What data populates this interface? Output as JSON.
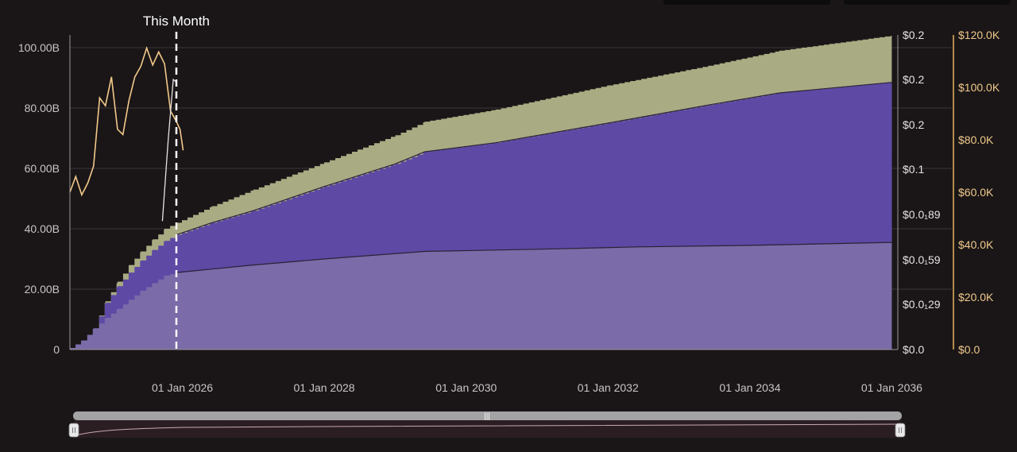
{
  "marker_label": "This Month",
  "colors": {
    "background": "#1a1617",
    "plot_bg": "#1a1617",
    "gridline": "#3b3638",
    "axis_text": "#c9c4c7",
    "price_axis_text": "#f0c98c",
    "price_line": "#f3c98a",
    "price_axis_line": "#e8b25e",
    "band_top": "#a9ab83",
    "band_middle": "#5e49a5",
    "band_bottom": "#7b6ba8",
    "marker_line": "#ffffff",
    "navigator_bg": "#2a1e23",
    "navigator_bar": "#a3a3a6"
  },
  "chart_data": {
    "type": "area",
    "stacked": true,
    "x_ticks": [
      "01 Jan 2026",
      "01 Jan 2028",
      "01 Jan 2030",
      "01 Jan 2032",
      "01 Jan 2034",
      "01 Jan 2036"
    ],
    "x_range": [
      "2024-06-01",
      "2036-02-01"
    ],
    "left_axis": {
      "ticks": [
        "0",
        "20.00B",
        "40.00B",
        "60.00B",
        "80.00B",
        "100.00B"
      ],
      "range": [
        0,
        100
      ]
    },
    "right_axis_1": {
      "ticks": [
        "$0.0",
        "$0.0₁29",
        "$0.0₁59",
        "$0.0₁89",
        "$0.1",
        "$0.2",
        "$0.2",
        "$0.2"
      ]
    },
    "right_axis_2": {
      "ticks": [
        "$0.0",
        "$20.0K",
        "$40.0K",
        "$60.0K",
        "$80.0K",
        "$100.0K",
        "$120.0K"
      ],
      "range": [
        0,
        120000
      ]
    },
    "marker_date": "2025-12-01",
    "bands": [
      {
        "role": "bottom",
        "points": [
          [
            "2024-06-01",
            0.5
          ],
          [
            "2024-08-01",
            3
          ],
          [
            "2024-10-01",
            7
          ],
          [
            "2024-12-01",
            10.5
          ],
          [
            "2025-02-01",
            13.5
          ],
          [
            "2025-04-01",
            16.5
          ],
          [
            "2025-06-01",
            19.5
          ],
          [
            "2025-08-01",
            22
          ],
          [
            "2025-10-01",
            24.5
          ],
          [
            "2025-12-01",
            25.5
          ],
          [
            "2027-01-01",
            28
          ],
          [
            "2028-01-01",
            30
          ],
          [
            "2029-06-01",
            32.5
          ],
          [
            "2031-01-01",
            33.2
          ],
          [
            "2032-06-01",
            34
          ],
          [
            "2034-01-01",
            34.5
          ],
          [
            "2036-01-01",
            35.5
          ]
        ]
      },
      {
        "role": "middle",
        "points": [
          [
            "2024-06-01",
            0.5
          ],
          [
            "2024-08-01",
            3
          ],
          [
            "2024-10-01",
            7
          ],
          [
            "2024-12-01",
            15.5
          ],
          [
            "2025-02-01",
            21
          ],
          [
            "2025-04-01",
            25.5
          ],
          [
            "2025-06-01",
            29.5
          ],
          [
            "2025-08-01",
            33
          ],
          [
            "2025-10-01",
            36
          ],
          [
            "2025-12-01",
            38
          ],
          [
            "2026-06-01",
            42
          ],
          [
            "2027-01-01",
            46
          ],
          [
            "2028-01-01",
            54
          ],
          [
            "2029-01-01",
            61.5
          ],
          [
            "2029-06-01",
            65.5
          ],
          [
            "2030-06-01",
            68.5
          ],
          [
            "2032-01-01",
            75
          ],
          [
            "2033-06-01",
            81
          ],
          [
            "2034-06-01",
            85
          ],
          [
            "2036-01-01",
            88.5
          ]
        ]
      },
      {
        "role": "top",
        "points": [
          [
            "2024-06-01",
            0.5
          ],
          [
            "2024-08-01",
            3
          ],
          [
            "2024-10-01",
            7
          ],
          [
            "2024-12-01",
            16
          ],
          [
            "2025-02-01",
            22.5
          ],
          [
            "2025-04-01",
            28
          ],
          [
            "2025-06-01",
            32.5
          ],
          [
            "2025-08-01",
            36.5
          ],
          [
            "2025-10-01",
            40
          ],
          [
            "2025-12-01",
            42
          ],
          [
            "2026-06-01",
            47.5
          ],
          [
            "2027-01-01",
            53
          ],
          [
            "2028-01-01",
            62
          ],
          [
            "2029-01-01",
            71
          ],
          [
            "2029-06-01",
            75.5
          ],
          [
            "2030-06-01",
            79.5
          ],
          [
            "2032-01-01",
            87.5
          ],
          [
            "2033-06-01",
            94
          ],
          [
            "2034-06-01",
            99
          ],
          [
            "2036-01-01",
            104
          ]
        ]
      }
    ],
    "price_series": {
      "axis": "right_axis_2",
      "points": [
        [
          "2024-06-01",
          60000
        ],
        [
          "2024-07-01",
          66000
        ],
        [
          "2024-08-01",
          59000
        ],
        [
          "2024-09-01",
          63500
        ],
        [
          "2024-10-01",
          70000
        ],
        [
          "2024-11-01",
          96000
        ],
        [
          "2024-12-01",
          93000
        ],
        [
          "2025-01-01",
          104000
        ],
        [
          "2025-02-01",
          84000
        ],
        [
          "2025-03-01",
          82000
        ],
        [
          "2025-04-01",
          95000
        ],
        [
          "2025-05-01",
          104000
        ],
        [
          "2025-06-01",
          108000
        ],
        [
          "2025-07-01",
          115000
        ],
        [
          "2025-08-01",
          108500
        ],
        [
          "2025-09-01",
          113500
        ],
        [
          "2025-10-01",
          109000
        ],
        [
          "2025-11-01",
          91000
        ],
        [
          "2025-12-01",
          87000
        ],
        [
          "2025-12-20",
          84000
        ],
        [
          "2026-01-05",
          76000
        ]
      ]
    },
    "secondary_line": {
      "axis": "right_axis_2",
      "points": [
        [
          "2025-09-20",
          49000
        ],
        [
          "2025-10-20",
          80000
        ],
        [
          "2025-11-15",
          103000
        ],
        [
          "2025-12-01",
          102000
        ]
      ]
    }
  }
}
